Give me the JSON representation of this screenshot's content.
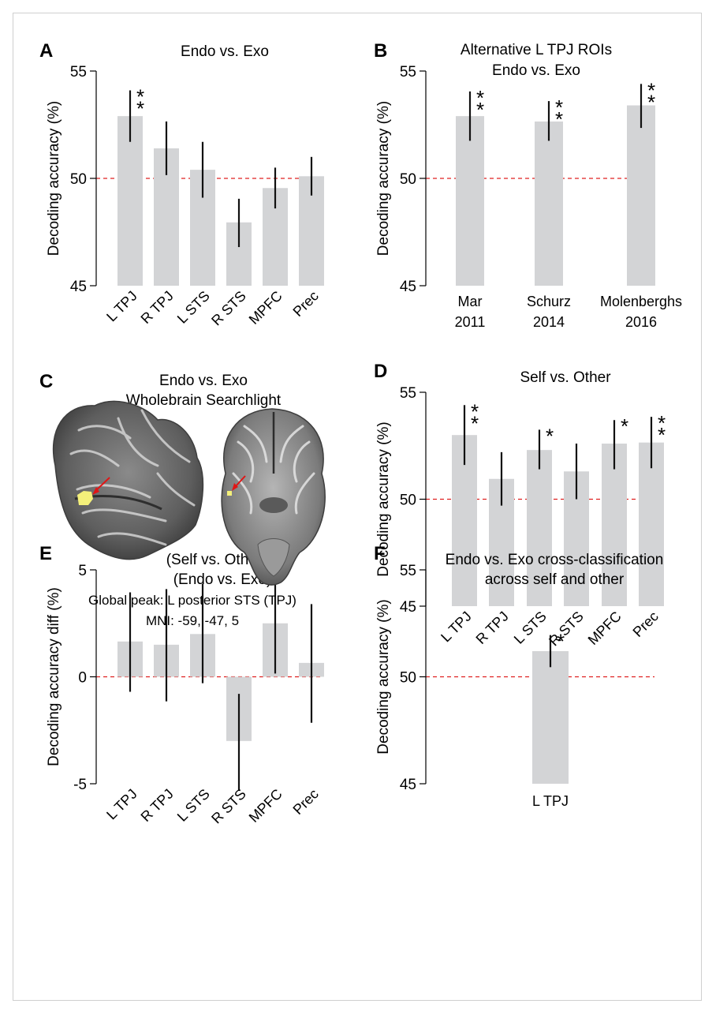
{
  "colors": {
    "bar": "#d3d4d6",
    "error": "#111111",
    "chance_line": "#e02020",
    "highlight": "#f4f07a",
    "arrow": "#e01515"
  },
  "chart_data": [
    {
      "panel": "A",
      "type": "bar",
      "title": [
        "Endo vs. Exo"
      ],
      "ylabel": "Decoding accuracy (%)",
      "ylim": [
        45,
        55
      ],
      "yticks": [
        "45",
        "50",
        "55"
      ],
      "ytick_values": [
        45,
        50,
        55
      ],
      "reference_line": 50,
      "categories": [
        "L TPJ",
        "R TPJ",
        "L STS",
        "R STS",
        "MPFC",
        "Prec"
      ],
      "rotate_labels": true,
      "values": [
        52.9,
        51.4,
        50.4,
        47.95,
        49.55,
        50.1
      ],
      "error_low": [
        51.7,
        50.15,
        49.1,
        46.8,
        48.6,
        49.2
      ],
      "error_high": [
        54.1,
        52.65,
        51.7,
        49.05,
        50.5,
        51.0
      ],
      "significance": [
        "**",
        "",
        "",
        "",
        "",
        ""
      ]
    },
    {
      "panel": "B",
      "type": "bar",
      "title": [
        "Alternative L TPJ ROIs",
        "Endo vs. Exo"
      ],
      "ylabel": "Decoding accuracy (%)",
      "ylim": [
        45,
        55
      ],
      "yticks": [
        "45",
        "50",
        "55"
      ],
      "ytick_values": [
        45,
        50,
        55
      ],
      "reference_line": 50,
      "categories": [
        [
          "Mar",
          "2011"
        ],
        [
          "Schurz",
          "2014"
        ],
        [
          "Molenberghs",
          "2016"
        ]
      ],
      "rotate_labels": false,
      "values": [
        52.9,
        52.65,
        53.4
      ],
      "error_low": [
        51.75,
        51.75,
        52.35
      ],
      "error_high": [
        54.05,
        53.6,
        54.4
      ],
      "significance": [
        "**",
        "**",
        "**"
      ]
    },
    {
      "panel": "D",
      "type": "bar",
      "title": [
        "Self vs. Other"
      ],
      "ylabel": "Decoding accuracy (%)",
      "ylim": [
        45,
        55
      ],
      "yticks": [
        "45",
        "50",
        "55"
      ],
      "ytick_values": [
        45,
        50,
        55
      ],
      "reference_line": 50,
      "categories": [
        "L TPJ",
        "R TPJ",
        "L STS",
        "R STS",
        "MPFC",
        "Prec"
      ],
      "rotate_labels": true,
      "values": [
        53.0,
        50.95,
        52.3,
        51.3,
        52.6,
        52.65
      ],
      "error_low": [
        51.6,
        49.7,
        51.4,
        50.0,
        51.4,
        51.45
      ],
      "error_high": [
        54.4,
        52.2,
        53.25,
        52.6,
        53.7,
        53.85
      ],
      "significance": [
        "**",
        "",
        "*",
        "",
        "*",
        "**"
      ]
    },
    {
      "panel": "E",
      "type": "bar",
      "title": [
        "(Self vs. Other) x",
        "(Endo vs. Exo)"
      ],
      "ylabel": "Decoding accuracy diff (%)",
      "ylim": [
        -5,
        5
      ],
      "yticks": [
        "-5",
        "0",
        "5"
      ],
      "ytick_values": [
        -5,
        0,
        5
      ],
      "reference_line": 0,
      "categories": [
        "L TPJ",
        "R TPJ",
        "L STS",
        "R STS",
        "MPFC",
        "Prec"
      ],
      "rotate_labels": true,
      "values": [
        1.65,
        1.5,
        2.0,
        -3.0,
        2.5,
        0.65
      ],
      "error_low": [
        -0.7,
        -1.15,
        -0.3,
        -5.3,
        0.15,
        -2.15
      ],
      "error_high": [
        3.95,
        4.1,
        4.35,
        -0.8,
        4.8,
        3.4
      ],
      "significance": [
        "",
        "",
        "",
        "",
        "",
        ""
      ]
    },
    {
      "panel": "F",
      "type": "bar",
      "title": [
        "Endo vs. Exo cross-classification",
        "across self and other"
      ],
      "ylabel": "Decoding accuracy (%)",
      "ylim": [
        45,
        55
      ],
      "yticks": [
        "45",
        "50",
        "55"
      ],
      "ytick_values": [
        45,
        50,
        55
      ],
      "reference_line": 50,
      "categories": [
        "L TPJ"
      ],
      "rotate_labels": false,
      "values": [
        51.2
      ],
      "error_low": [
        50.45
      ],
      "error_high": [
        51.95
      ],
      "significance": [
        "*"
      ]
    }
  ],
  "panel_c": {
    "label": "C",
    "title": [
      "Endo vs. Exo",
      "Wholebrain Searchlight"
    ],
    "caption": [
      "Global peak: L posterior STS (TPJ)",
      "MNI: -59, -47, 5"
    ]
  }
}
